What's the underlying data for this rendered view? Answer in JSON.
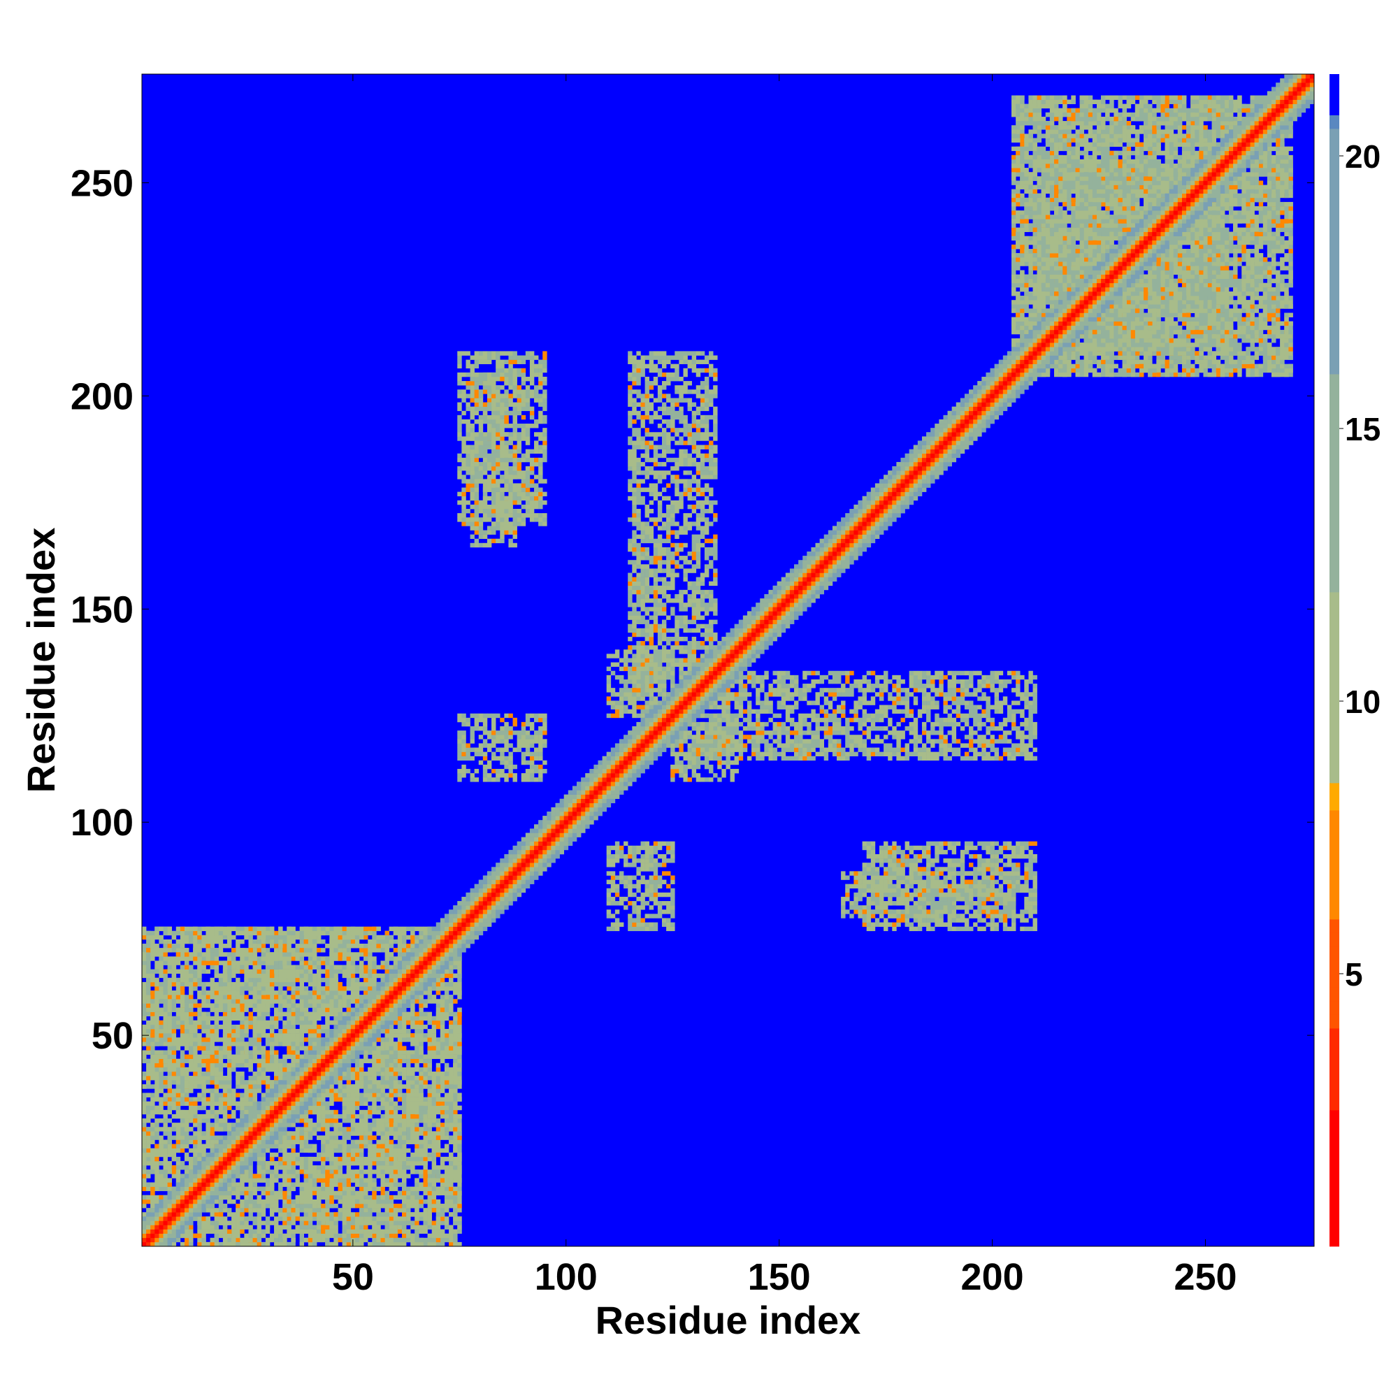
{
  "chart_data": {
    "type": "heatmap",
    "title": "",
    "xlabel": "Residue index",
    "ylabel": "Residue index",
    "xlim": [
      1,
      275
    ],
    "ylim": [
      1,
      275
    ],
    "x_ticks": [
      50,
      100,
      150,
      200,
      250
    ],
    "y_ticks": [
      50,
      100,
      150,
      200,
      250
    ],
    "x_tick_labels": [
      "50",
      "100",
      "150",
      "200",
      "250"
    ],
    "y_tick_labels": [
      "50",
      "100",
      "150",
      "200",
      "250"
    ],
    "colorbar": {
      "range": [
        0,
        21.5
      ],
      "ticks": [
        5,
        10,
        15,
        20
      ],
      "tick_labels": [
        "5",
        "10",
        "15",
        "20"
      ],
      "overflow_color": "#0000ff",
      "stops": [
        {
          "value": 0,
          "color": "#ff0000"
        },
        {
          "value": 2.5,
          "color": "#ff2a00"
        },
        {
          "value": 4,
          "color": "#ff5500"
        },
        {
          "value": 6,
          "color": "#ff8800"
        },
        {
          "value": 8,
          "color": "#ffaa00"
        },
        {
          "value": 8.6,
          "color": "#a8bc8a"
        },
        {
          "value": 12,
          "color": "#94b29c"
        },
        {
          "value": 16,
          "color": "#7aa0b4"
        },
        {
          "value": 20.5,
          "color": "#5a88c0"
        },
        {
          "value": 20.8,
          "color": "#0000ff"
        }
      ]
    },
    "diagonal": {
      "from": 1,
      "to": 275
    },
    "contact_bands": [
      {
        "x": [
          1,
          75
        ],
        "y": [
          1,
          75
        ],
        "level": "block"
      },
      {
        "x": [
          78,
          88
        ],
        "y": [
          165,
          205
        ],
        "level": "strand"
      },
      {
        "x": [
          110,
          125
        ],
        "y": [
          75,
          95
        ],
        "level": "strand"
      },
      {
        "x": [
          110,
          125
        ],
        "y": [
          125,
          140
        ],
        "level": "strand"
      },
      {
        "x": [
          130,
          210
        ],
        "y": [
          115,
          135
        ],
        "level": "strand"
      },
      {
        "x": [
          170,
          210
        ],
        "y": [
          75,
          95
        ],
        "level": "strand"
      },
      {
        "x": [
          205,
          270
        ],
        "y": [
          205,
          270
        ],
        "level": "strand"
      },
      {
        "x": [
          210,
          255
        ],
        "y": [
          210,
          255
        ],
        "level": "strand"
      }
    ]
  }
}
